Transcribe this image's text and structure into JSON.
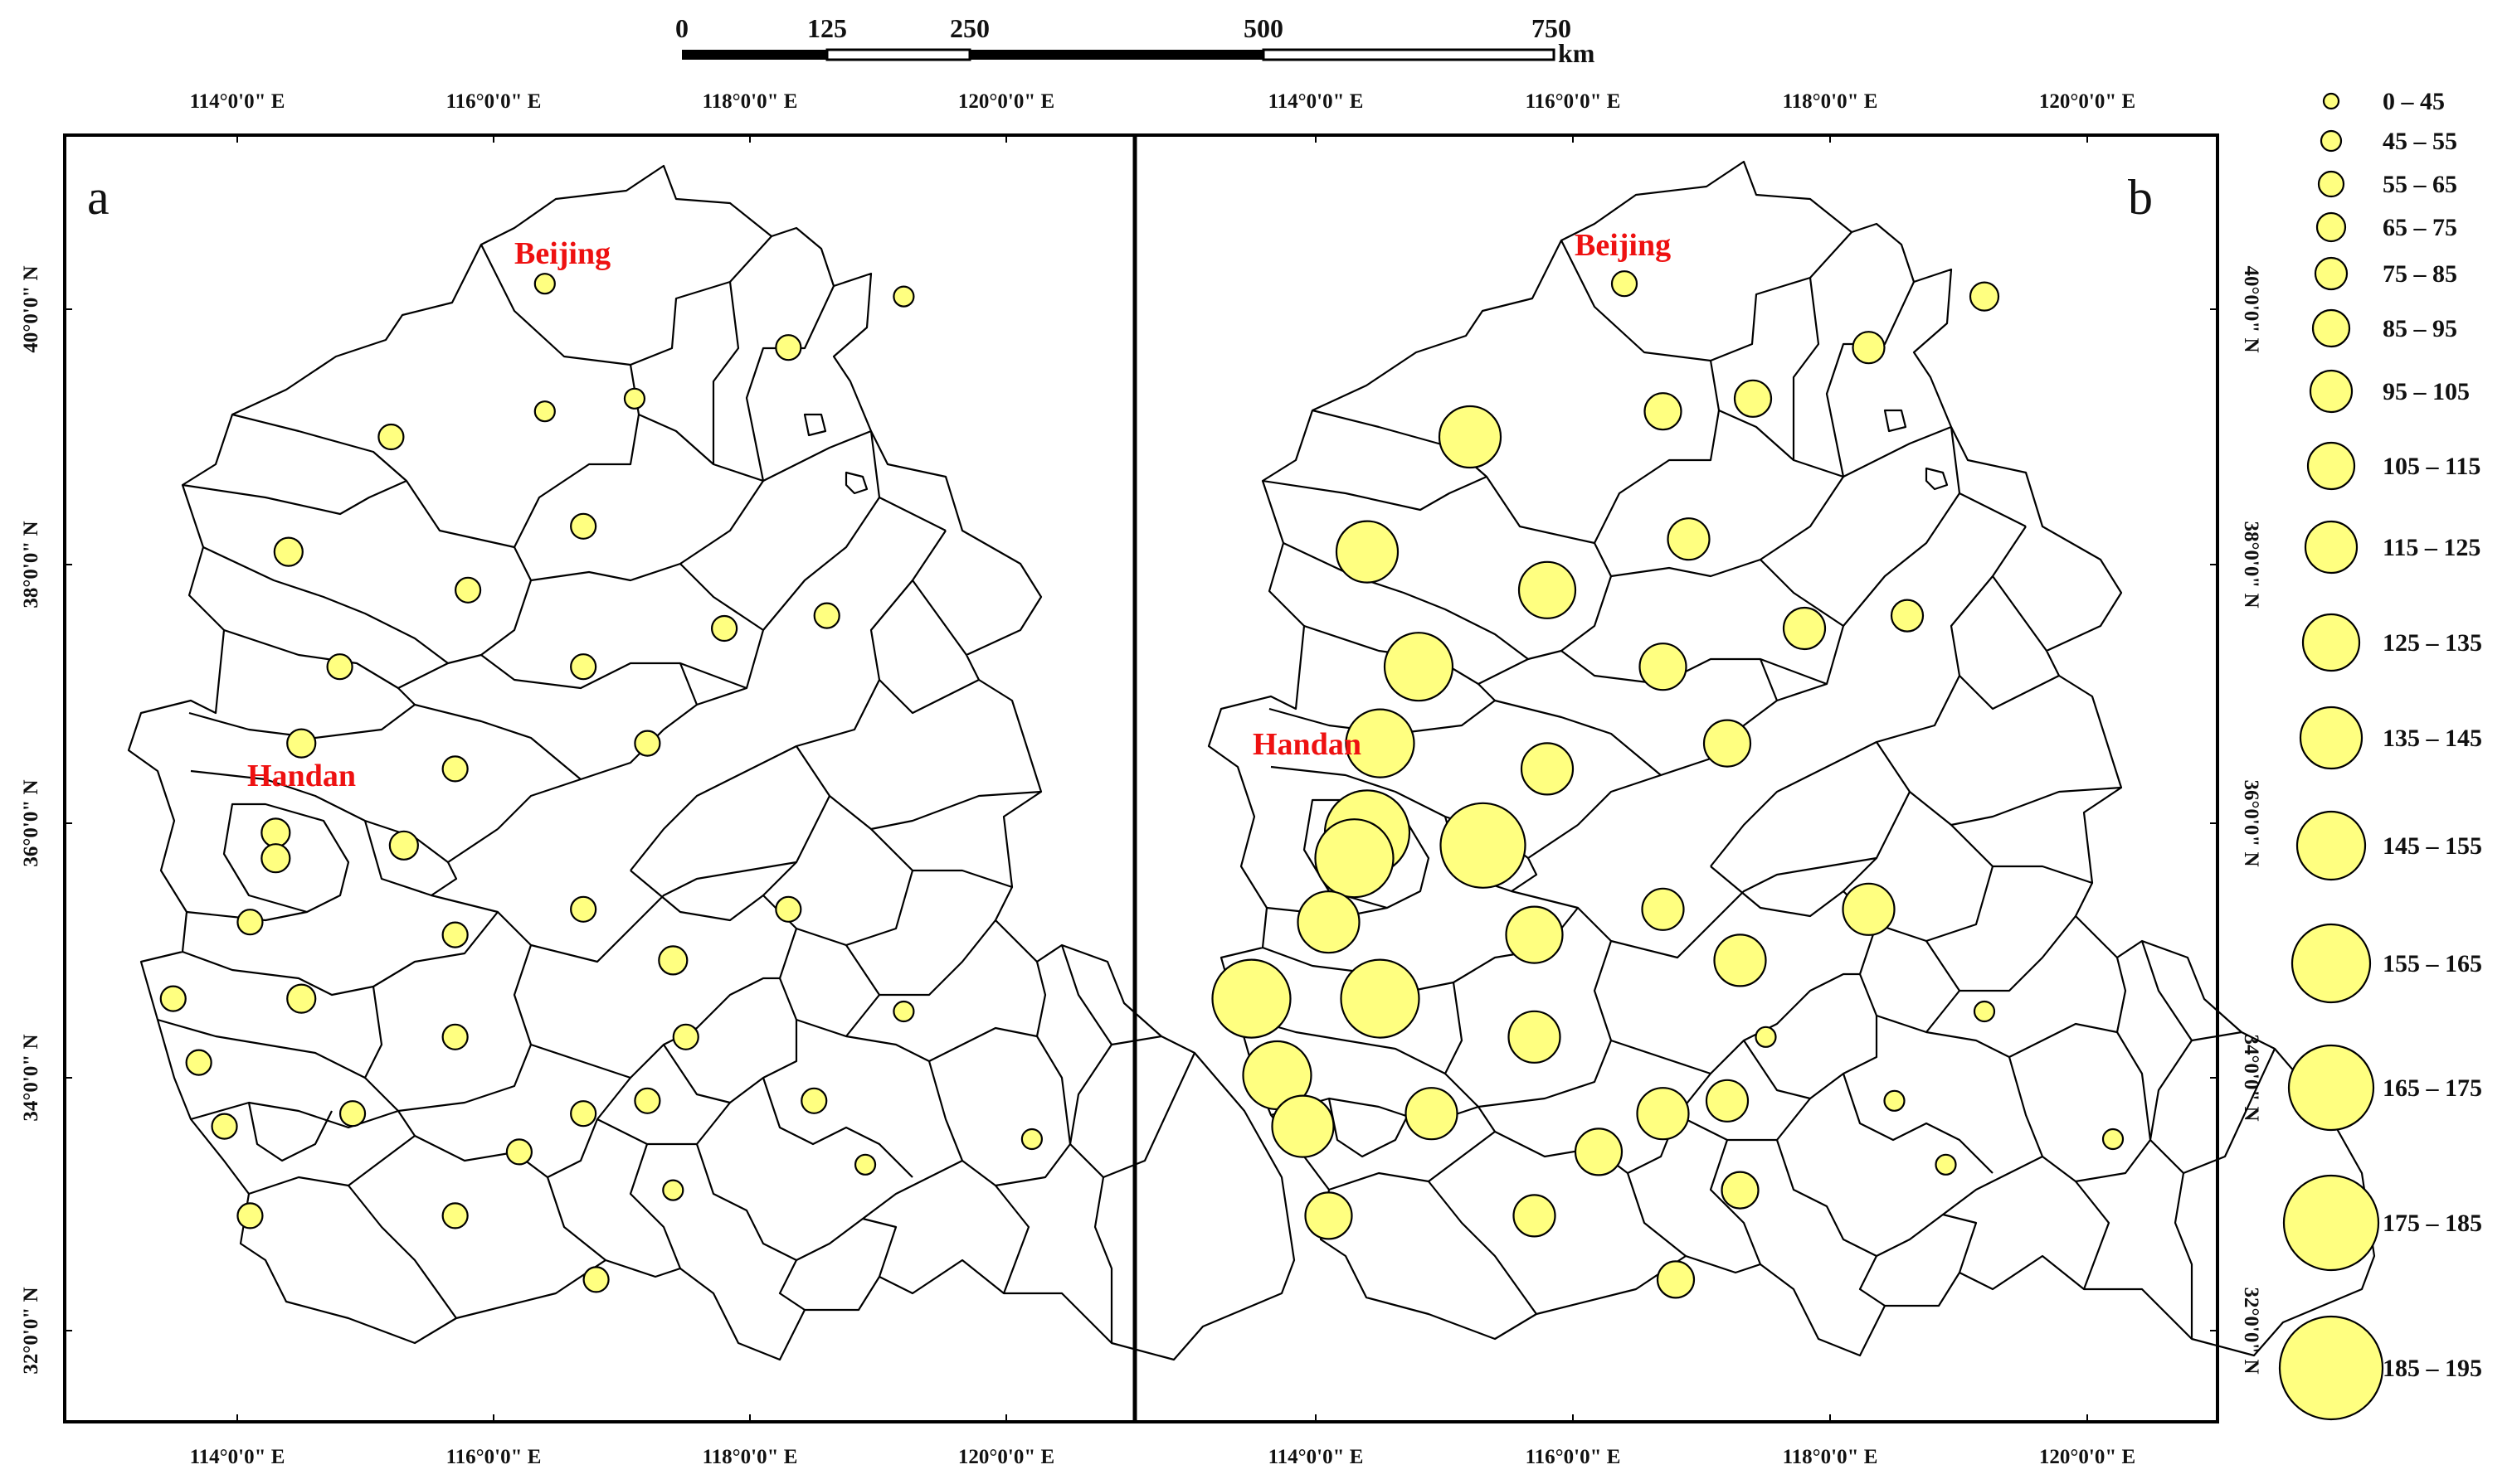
{
  "scale_bar": {
    "ticks": [
      "0",
      "125",
      "250",
      "500",
      "750"
    ],
    "tick_values": [
      0,
      125,
      250,
      500,
      750
    ],
    "unit": "km"
  },
  "axes": {
    "longitude_labels": [
      "114°0'0\" E",
      "116°0'0\" E",
      "118°0'0\" E",
      "120°0'0\" E"
    ],
    "longitude_values": [
      114,
      116,
      118,
      120
    ],
    "latitude_labels": [
      "40°0'0\" N",
      "38°0'0\" N",
      "36°0'0\" N",
      "34°0'0\" N",
      "32°0'0\" N"
    ],
    "latitude_values": [
      40,
      38,
      36,
      34,
      32
    ]
  },
  "panels": [
    {
      "letter": "a",
      "labels": [
        {
          "text": "Beijing",
          "lon": 116.5,
          "lat": 40.5
        },
        {
          "text": "Handan",
          "lon": 114.6,
          "lat": 36.4
        }
      ],
      "symbols": [
        [
          116.4,
          40.2,
          1
        ],
        [
          119.2,
          40.1,
          1
        ],
        [
          118.3,
          39.7,
          2
        ],
        [
          117.1,
          39.3,
          1
        ],
        [
          116.4,
          39.2,
          1
        ],
        [
          115.2,
          39.0,
          2
        ],
        [
          116.7,
          38.3,
          2
        ],
        [
          114.4,
          38.1,
          3
        ],
        [
          115.8,
          37.8,
          2
        ],
        [
          117.8,
          37.5,
          2
        ],
        [
          118.6,
          37.6,
          2
        ],
        [
          114.8,
          37.2,
          2
        ],
        [
          116.7,
          37.2,
          2
        ],
        [
          114.5,
          36.6,
          3
        ],
        [
          117.2,
          36.6,
          2
        ],
        [
          115.7,
          36.4,
          2
        ],
        [
          114.3,
          35.9,
          3
        ],
        [
          114.3,
          35.7,
          3
        ],
        [
          115.3,
          35.8,
          3
        ],
        [
          116.7,
          35.3,
          2
        ],
        [
          114.1,
          35.2,
          2
        ],
        [
          118.3,
          35.3,
          2
        ],
        [
          115.7,
          35.1,
          2
        ],
        [
          117.4,
          34.9,
          3
        ],
        [
          113.5,
          34.6,
          2
        ],
        [
          114.5,
          34.6,
          3
        ],
        [
          117.5,
          34.3,
          2
        ],
        [
          119.2,
          34.5,
          1
        ],
        [
          115.7,
          34.3,
          2
        ],
        [
          113.7,
          34.1,
          2
        ],
        [
          117.2,
          33.8,
          2
        ],
        [
          113.9,
          33.6,
          2
        ],
        [
          114.9,
          33.7,
          2
        ],
        [
          116.7,
          33.7,
          2
        ],
        [
          118.5,
          33.8,
          2
        ],
        [
          116.2,
          33.4,
          2
        ],
        [
          118.9,
          33.3,
          1
        ],
        [
          120.2,
          33.5,
          1
        ],
        [
          117.4,
          33.1,
          1
        ],
        [
          114.1,
          32.9,
          2
        ],
        [
          115.7,
          32.9,
          2
        ],
        [
          116.8,
          32.4,
          2
        ]
      ]
    },
    {
      "letter": "b",
      "labels": [
        {
          "text": "Beijing",
          "lon": 116.5,
          "lat": 40.5
        },
        {
          "text": "Handan",
          "lon": 114.1,
          "lat": 36.6
        }
      ],
      "symbols": [
        [
          116.4,
          40.2,
          2
        ],
        [
          119.2,
          40.1,
          3
        ],
        [
          118.3,
          39.7,
          4
        ],
        [
          116.7,
          39.2,
          5
        ],
        [
          117.4,
          39.3,
          5
        ],
        [
          115.2,
          39.0,
          10
        ],
        [
          116.9,
          38.2,
          6
        ],
        [
          114.4,
          38.1,
          10
        ],
        [
          115.8,
          37.8,
          9
        ],
        [
          117.8,
          37.5,
          6
        ],
        [
          118.6,
          37.6,
          4
        ],
        [
          114.8,
          37.2,
          11
        ],
        [
          116.7,
          37.2,
          7
        ],
        [
          114.5,
          36.6,
          11
        ],
        [
          117.2,
          36.6,
          7
        ],
        [
          115.8,
          36.4,
          8
        ],
        [
          114.4,
          35.9,
          13
        ],
        [
          114.3,
          35.7,
          12
        ],
        [
          115.3,
          35.8,
          13
        ],
        [
          116.7,
          35.3,
          6
        ],
        [
          114.1,
          35.2,
          10
        ],
        [
          118.3,
          35.3,
          8
        ],
        [
          115.7,
          35.1,
          9
        ],
        [
          117.3,
          34.9,
          8
        ],
        [
          113.5,
          34.6,
          12
        ],
        [
          114.5,
          34.6,
          12
        ],
        [
          117.5,
          34.3,
          1
        ],
        [
          119.2,
          34.5,
          1
        ],
        [
          115.7,
          34.3,
          8
        ],
        [
          113.7,
          34.0,
          11
        ],
        [
          117.2,
          33.8,
          6
        ],
        [
          113.9,
          33.6,
          10
        ],
        [
          114.9,
          33.7,
          8
        ],
        [
          116.7,
          33.7,
          8
        ],
        [
          118.5,
          33.8,
          1
        ],
        [
          116.2,
          33.4,
          7
        ],
        [
          118.9,
          33.3,
          1
        ],
        [
          120.2,
          33.5,
          1
        ],
        [
          117.3,
          33.1,
          5
        ],
        [
          114.1,
          32.9,
          7
        ],
        [
          115.7,
          32.9,
          6
        ],
        [
          116.8,
          32.4,
          5
        ]
      ]
    }
  ],
  "legend": {
    "classes": [
      "0 – 45",
      "45 – 55",
      "55 – 65",
      "65 – 75",
      "75 – 85",
      "85 – 95",
      "95 – 105",
      "105 – 115",
      "115 – 125",
      "125 – 135",
      "135 – 145",
      "145 – 155",
      "155 – 165",
      "165 – 175",
      "175 – 185",
      "185 – 195"
    ]
  },
  "colors": {
    "symbol_fill": "#ffff80",
    "label_red": "#ee1111",
    "outline": "#000000"
  }
}
